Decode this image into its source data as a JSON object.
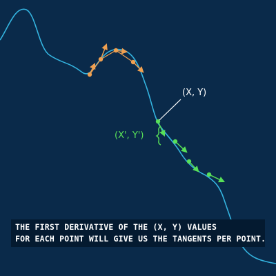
{
  "labels": {
    "point": "(X, Y)",
    "derivative": "(X', Y')"
  },
  "caption": {
    "line1": "THE FIRST DERIVATIVE OF THE (X, Y) VALUES",
    "line2": "FOR EACH POINT WILL GIVE US THE TANGENTS PER POINT."
  },
  "colors": {
    "background": "#0a2a4a",
    "curve": "#34b4e0",
    "orange": "#f0a050",
    "green": "#58e058",
    "text": "#ffffff",
    "caption_bg": "#041a30"
  }
}
